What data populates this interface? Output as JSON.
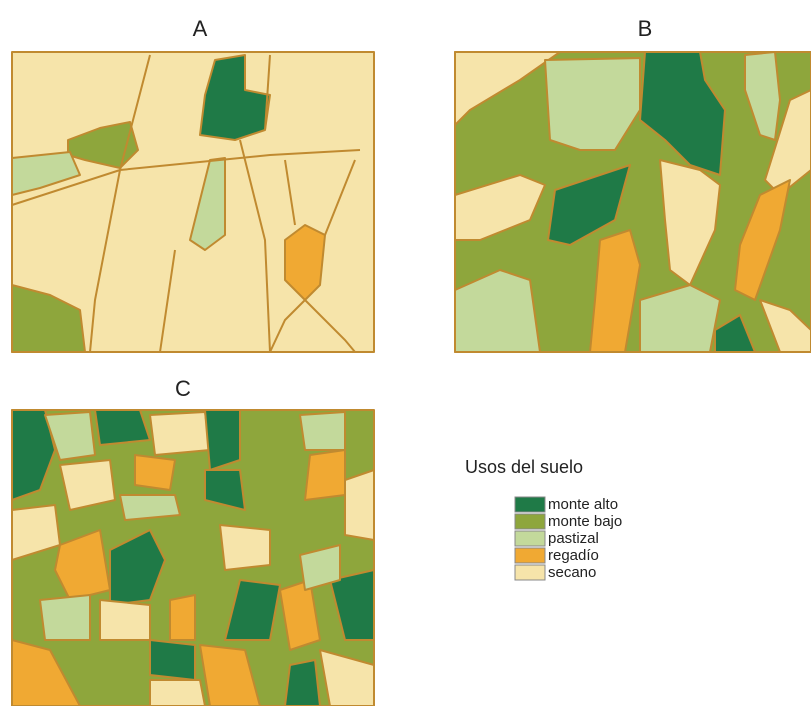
{
  "panels": [
    {
      "label": "A"
    },
    {
      "label": "B"
    },
    {
      "label": "C"
    }
  ],
  "legend": {
    "title": "Usos del suelo",
    "items": [
      {
        "label": "monte alto",
        "color": "#1f7a47"
      },
      {
        "label": "monte bajo",
        "color": "#8ea63c"
      },
      {
        "label": "pastizal",
        "color": "#c3d99b"
      },
      {
        "label": "regadío",
        "color": "#f0a933"
      },
      {
        "label": "secano",
        "color": "#f6e4aa"
      }
    ]
  }
}
